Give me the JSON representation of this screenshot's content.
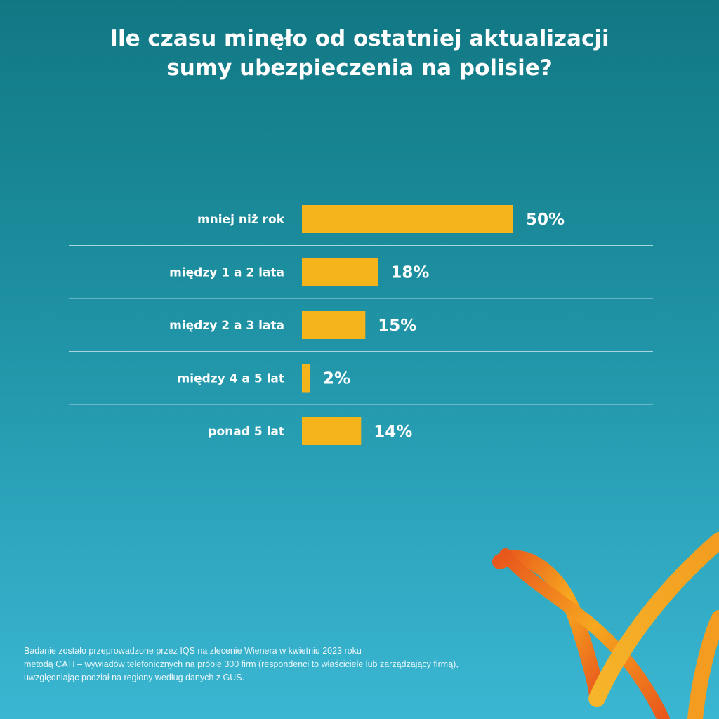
{
  "title": {
    "line1": "Ile czasu minęło od ostatniej aktualizacji",
    "line2": "sumy ubezpieczenia na polisie?"
  },
  "chart_data": {
    "type": "bar",
    "orientation": "horizontal",
    "categories": [
      "mniej niż rok",
      "między 1 a 2 lata",
      "między 2 a 3 lata",
      "między 4 a 5 lat",
      "ponad 5 lat"
    ],
    "values": [
      50,
      18,
      15,
      2,
      14
    ],
    "value_labels": [
      "50%",
      "18%",
      "15%",
      "2%",
      "14%"
    ],
    "unit": "%",
    "bar_color": "#f4b41a",
    "separator_color": "#a8d6df",
    "grid": false,
    "legend": "none"
  },
  "footnote": {
    "line1": "Badanie zostało przeprowadzone przez IQS na zlecenie Wienera w kwietniu 2023 roku",
    "line2": "metodą CATI – wywiadów telefonicznych na próbie 300 firm (respondenci to właściciele lub zarządzający firmą),",
    "line3": "uwzględniając podział na regiony według danych z GUS."
  },
  "logo": {
    "icon": "wiener-ribbon-logo-icon",
    "color_primary": "#f39c1f",
    "color_secondary": "#e8571c"
  }
}
